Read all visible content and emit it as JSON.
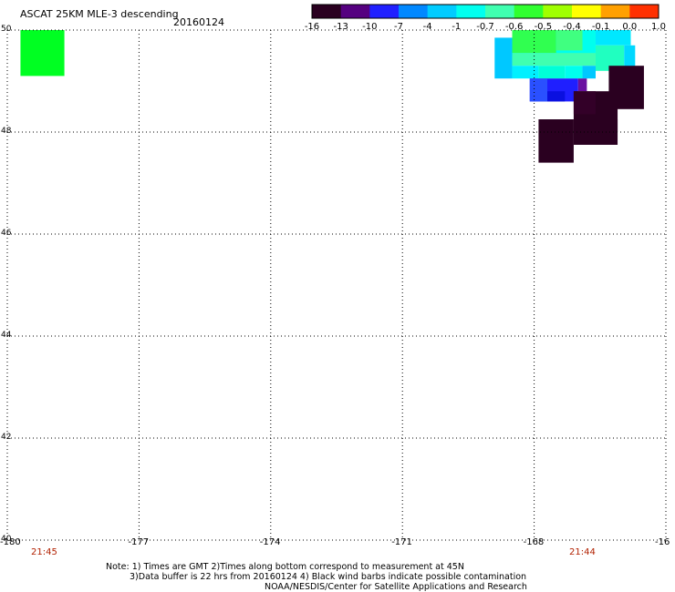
{
  "title": "ASCAT 25KM MLE-3 descending",
  "date": "20160124",
  "colorbar": {
    "ticks": [
      "-16",
      "-13",
      "-10",
      "-7",
      "-4",
      "-1",
      "-0.7",
      "-0.6",
      "-0.5",
      "-0.4",
      "-0.1",
      "0.0",
      "1.0"
    ],
    "colors": [
      "#2a0020",
      "#550080",
      "#2020ff",
      "#0088ff",
      "#00ccff",
      "#00ffee",
      "#40ffb0",
      "#30ff30",
      "#a0ff00",
      "#ffff00",
      "#ffa000",
      "#ff3000"
    ]
  },
  "y_ticks": [
    "50",
    "48",
    "46",
    "44",
    "42",
    "40"
  ],
  "x_ticks": [
    "-180",
    "-177",
    "-174",
    "-171",
    "-168",
    "-16"
  ],
  "time_labels": [
    "21:45",
    "21:44"
  ],
  "notes": {
    "line1": "Note: 1) Times are GMT 2)Times along bottom correspond to measurement at 45N",
    "line2": "3)Data buffer is 22 hrs from 20160124 4) Black wind barbs indicate possible contamination",
    "line3": "NOAA/NESDIS/Center for Satellite Applications and Research"
  },
  "map_data": {
    "lon_range": [
      -180,
      -165
    ],
    "lat_range": [
      40,
      50
    ],
    "cells": [
      {
        "lon0": -179.7,
        "lon1": -178.7,
        "lat0": 49.1,
        "lat1": 50.0,
        "color": "#00ff22"
      },
      {
        "lon0": -168.9,
        "lon1": -168.5,
        "lat0": 49.05,
        "lat1": 49.85,
        "color": "#00c8ff"
      },
      {
        "lon0": -168.5,
        "lon1": -166.6,
        "lat0": 49.5,
        "lat1": 50.0,
        "color": "#00ffee"
      },
      {
        "lon0": -168.5,
        "lon1": -167.5,
        "lat0": 49.55,
        "lat1": 50.0,
        "color": "#30ff50"
      },
      {
        "lon0": -167.5,
        "lon1": -166.9,
        "lat0": 49.6,
        "lat1": 50.0,
        "color": "#40ff80"
      },
      {
        "lon0": -166.6,
        "lon1": -165.8,
        "lat0": 49.7,
        "lat1": 50.0,
        "color": "#00e8ff"
      },
      {
        "lon0": -166.6,
        "lon1": -165.95,
        "lat0": 49.2,
        "lat1": 49.7,
        "color": "#20ffc0"
      },
      {
        "lon0": -165.95,
        "lon1": -165.7,
        "lat0": 49.2,
        "lat1": 49.7,
        "color": "#00d8ff"
      },
      {
        "lon0": -168.5,
        "lon1": -166.6,
        "lat0": 49.3,
        "lat1": 49.55,
        "color": "#40ffb0"
      },
      {
        "lon0": -168.5,
        "lon1": -167.9,
        "lat0": 49.05,
        "lat1": 49.3,
        "color": "#00f0ff"
      },
      {
        "lon0": -167.9,
        "lon1": -167.3,
        "lat0": 49.05,
        "lat1": 49.3,
        "color": "#00ffd8"
      },
      {
        "lon0": -167.3,
        "lon1": -166.9,
        "lat0": 49.05,
        "lat1": 49.3,
        "color": "#00ffee"
      },
      {
        "lon0": -166.9,
        "lon1": -166.6,
        "lat0": 49.05,
        "lat1": 49.3,
        "color": "#00c8ff"
      },
      {
        "lon0": -168.1,
        "lon1": -167.0,
        "lat0": 48.6,
        "lat1": 49.05,
        "color": "#1f1fff"
      },
      {
        "lon0": -168.1,
        "lon1": -167.7,
        "lat0": 48.6,
        "lat1": 49.05,
        "color": "#2a50ff"
      },
      {
        "lon0": -167.7,
        "lon1": -167.3,
        "lat0": 48.6,
        "lat1": 48.8,
        "color": "#0a10e0"
      },
      {
        "lon0": -167.0,
        "lon1": -166.8,
        "lat0": 48.8,
        "lat1": 49.05,
        "color": "#6a10a0"
      },
      {
        "lon0": -166.3,
        "lon1": -165.5,
        "lat0": 48.45,
        "lat1": 49.3,
        "color": "#2a0020"
      },
      {
        "lon0": -167.1,
        "lon1": -166.1,
        "lat0": 48.0,
        "lat1": 48.8,
        "color": "#2a0020"
      },
      {
        "lon0": -167.1,
        "lon1": -166.1,
        "lat0": 47.75,
        "lat1": 48.25,
        "color": "#2a0020"
      },
      {
        "lon0": -167.1,
        "lon1": -166.6,
        "lat0": 48.35,
        "lat1": 48.8,
        "color": "#330028"
      },
      {
        "lon0": -167.9,
        "lon1": -167.1,
        "lat0": 47.4,
        "lat1": 48.25,
        "color": "#2a0020"
      }
    ]
  }
}
